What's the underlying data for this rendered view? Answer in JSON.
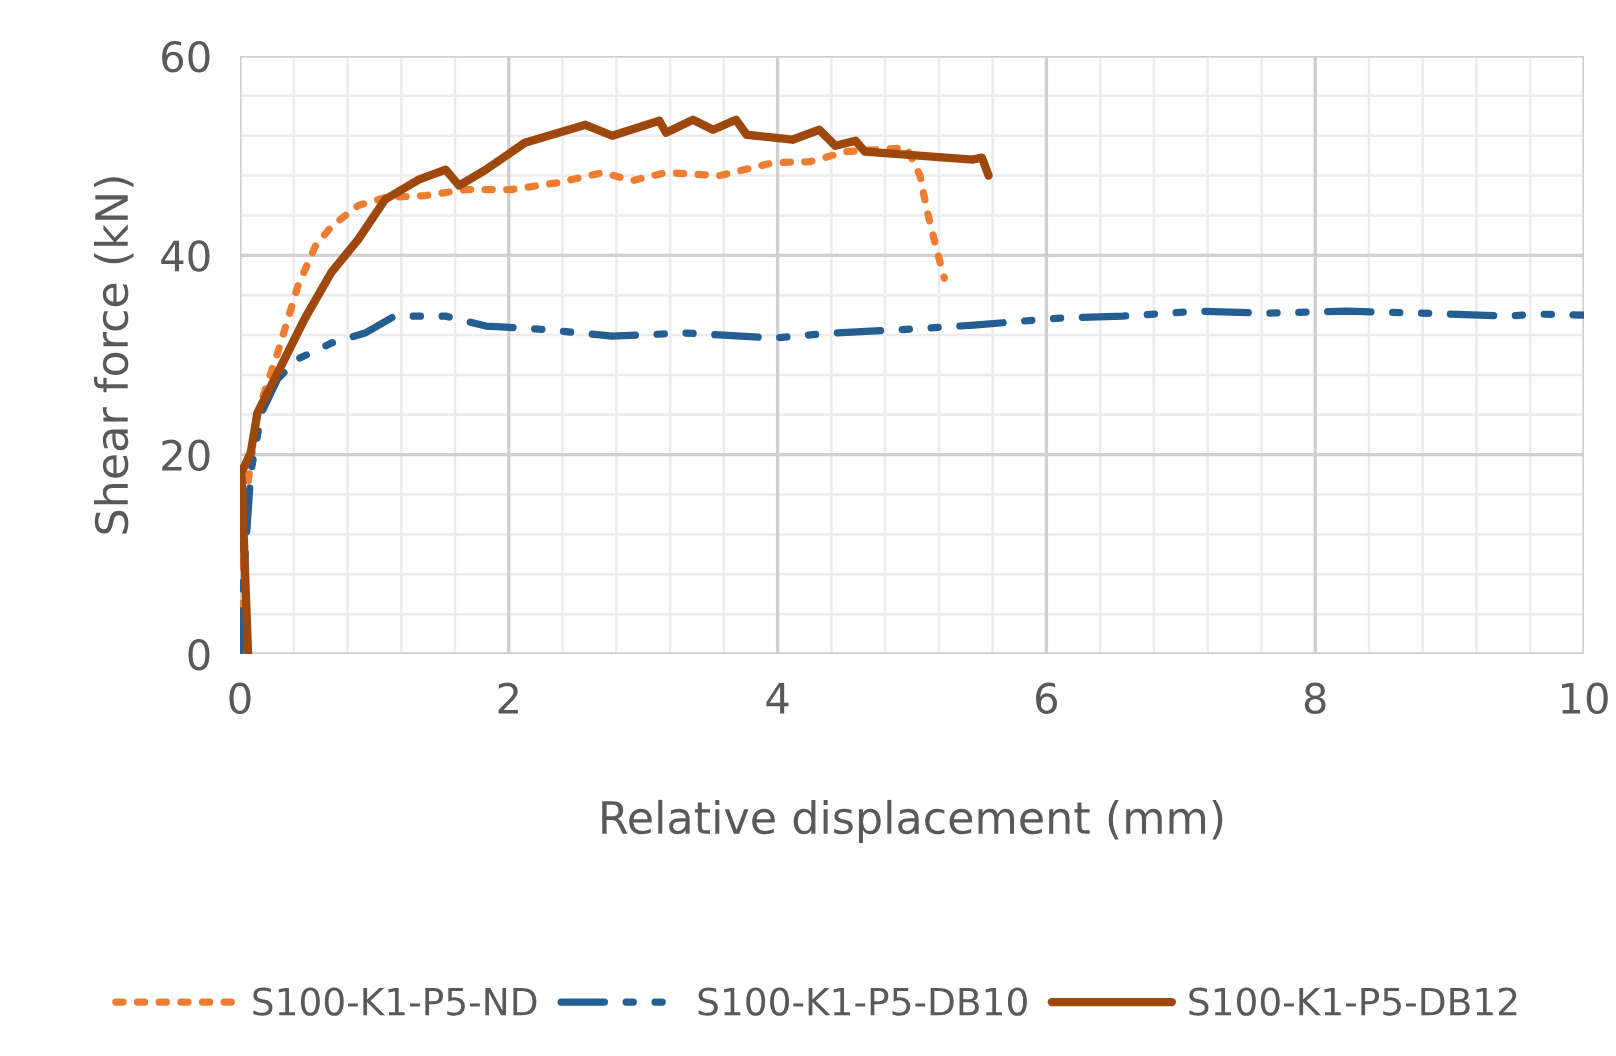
{
  "chart_data": {
    "type": "line",
    "xlabel": "Relative displacement (mm)",
    "ylabel": "Shear force (kN)",
    "xlim": [
      0,
      10
    ],
    "ylim": [
      0,
      60
    ],
    "xticks": [
      0,
      2,
      4,
      6,
      8,
      10
    ],
    "yticks": [
      0,
      20,
      40,
      60
    ],
    "grid": true,
    "legend": "bottom",
    "marker": "none",
    "series": [
      {
        "name": "S100-K1-P5-ND",
        "color": "#ed7d31",
        "line_style": "dotted",
        "x": [
          0,
          0.035,
          0.13,
          0.28,
          0.43,
          0.56,
          0.68,
          0.88,
          1.08,
          1.38,
          1.68,
          2.02,
          2.37,
          2.7,
          2.92,
          3.17,
          3.57,
          3.97,
          4.24,
          4.51,
          4.96,
          5.06,
          5.11,
          5.17,
          5.24
        ],
        "values": [
          0,
          14.8,
          24.2,
          30.2,
          36.9,
          40.9,
          42.9,
          45,
          45.8,
          46,
          46.6,
          46.6,
          47.3,
          48.3,
          47.5,
          48.3,
          48,
          49.3,
          49.4,
          50.4,
          50.8,
          48,
          44.6,
          41.3,
          37.7
        ]
      },
      {
        "name": "S100-K1-P5-DB10",
        "color": "#255e91",
        "line_style": "dashed",
        "x": [
          0,
          0.03,
          0.08,
          0.16,
          0.28,
          0.43,
          0.68,
          0.93,
          1.15,
          1.53,
          1.83,
          2.22,
          2.77,
          3.32,
          3.97,
          4.4,
          5.0,
          5.46,
          6.1,
          6.57,
          7.14,
          7.64,
          8.23,
          8.78,
          9.42,
          9.67,
          10
        ],
        "values": [
          0,
          8.2,
          18.2,
          24.2,
          27.6,
          29.6,
          31.2,
          32.2,
          33.9,
          33.9,
          32.9,
          32.6,
          31.9,
          32.2,
          31.7,
          32.2,
          32.6,
          33,
          33.7,
          33.9,
          34.4,
          34.2,
          34.4,
          34.2,
          33.9,
          34.1,
          34
        ]
      },
      {
        "name": "S100-K1-P5-DB12",
        "color": "#9e480e",
        "line_style": "solid",
        "x": [
          0.06,
          0.01,
          0.08,
          0.13,
          0.28,
          0.48,
          0.68,
          0.88,
          1.08,
          1.33,
          1.53,
          1.63,
          1.83,
          2.12,
          2.57,
          2.77,
          3.12,
          3.17,
          3.37,
          3.52,
          3.69,
          3.77,
          4.11,
          4.31,
          4.43,
          4.58,
          4.65,
          5.45,
          5.52,
          5.57
        ],
        "values": [
          0,
          18.2,
          20.2,
          24.2,
          28.2,
          33.6,
          38.3,
          41.6,
          45.6,
          47.6,
          48.6,
          47,
          48.6,
          51.3,
          53.1,
          52,
          53.5,
          52.3,
          53.6,
          52.6,
          53.6,
          52.1,
          51.6,
          52.6,
          51,
          51.5,
          50.4,
          49.6,
          49.8,
          48
        ]
      }
    ]
  }
}
